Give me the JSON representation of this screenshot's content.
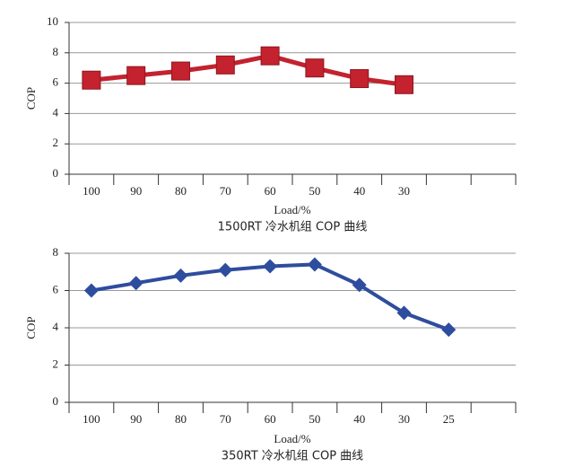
{
  "chart_data": [
    {
      "type": "line",
      "title": "1500RT 冷水机组 COP 曲线",
      "x_label": "Load/%",
      "y_label": "COP",
      "categories": [
        100,
        90,
        80,
        70,
        60,
        50,
        40,
        30,
        null,
        null
      ],
      "series": [
        {
          "name": null,
          "color": "#c3222e",
          "marker": "square",
          "values": [
            6.2,
            6.5,
            6.8,
            7.2,
            7.8,
            7.0,
            6.3,
            5.9,
            null,
            null
          ]
        }
      ],
      "ylim": [
        0,
        10
      ],
      "yticks": [
        0,
        2,
        4,
        6,
        8,
        10
      ],
      "grid": true
    },
    {
      "type": "line",
      "title": "350RT 冷水机组 COP 曲线",
      "x_label": "Load/%",
      "y_label": "COP",
      "categories": [
        100,
        90,
        80,
        70,
        60,
        50,
        40,
        30,
        25,
        null
      ],
      "series": [
        {
          "name": null,
          "color": "#2f4d9e",
          "marker": "diamond",
          "values": [
            6.0,
            6.4,
            6.8,
            7.1,
            7.3,
            7.4,
            6.3,
            4.8,
            3.9,
            null
          ]
        }
      ],
      "ylim": [
        0,
        8
      ],
      "yticks": [
        0,
        2,
        4,
        6,
        8
      ],
      "grid": true
    }
  ]
}
